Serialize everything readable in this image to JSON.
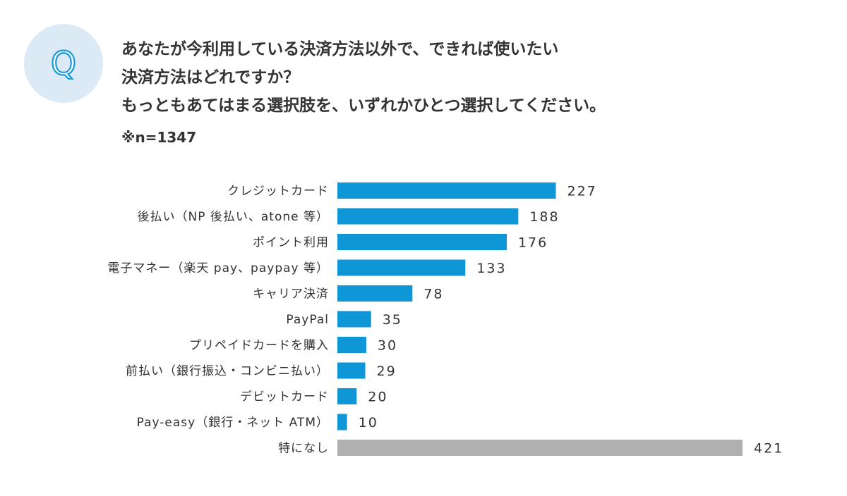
{
  "header": {
    "badge_letter": "Q",
    "badge_color": "#1a9bd7",
    "question_lines": [
      "あなたが今利用している決済方法以外で、できれば使いたい",
      "決済方法はどれですか？",
      "もっともあてはまる選択肢を、いずれかひとつ選択してください。"
    ],
    "sample_size": "※n=1347"
  },
  "colors": {
    "bar": "#0e96d6",
    "bar_none": "#b0b0b0"
  },
  "chart_data": {
    "type": "bar",
    "orientation": "horizontal",
    "title": "",
    "xlabel": "",
    "ylabel": "",
    "xlim": [
      0,
      421
    ],
    "grid": false,
    "categories": [
      "クレジットカード",
      "後払い（NP 後払い、atone 等）",
      "ポイント利用",
      "電子マネー（楽天 pay、paypay 等）",
      "キャリア決済",
      "PayPal",
      "プリペイドカードを購入",
      "前払い（銀行振込・コンビニ払い）",
      "デビットカード",
      "Pay-easy（銀行・ネット ATM）",
      "特になし"
    ],
    "values": [
      227,
      188,
      176,
      133,
      78,
      35,
      30,
      29,
      20,
      10,
      421
    ],
    "value_labels": [
      "227",
      "188",
      "176",
      "133",
      "78",
      "35",
      "30",
      "29",
      "20",
      "10",
      "421"
    ],
    "highlight_gray_index": 10
  }
}
